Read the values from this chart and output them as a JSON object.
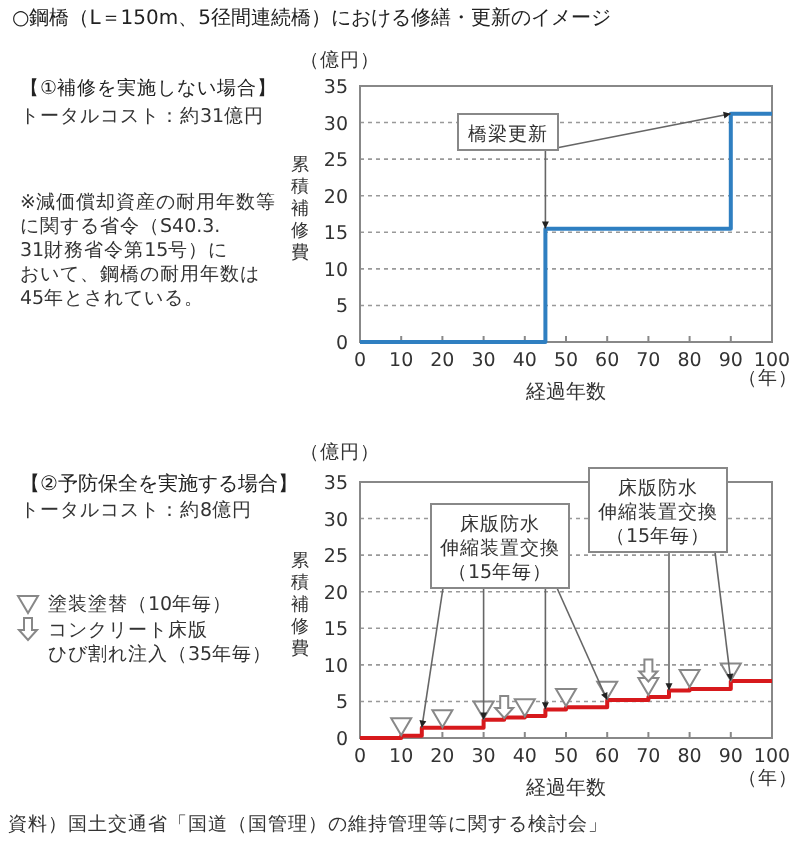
{
  "chart_data": [
    {
      "type": "step",
      "title": "○鋼橋（L＝150m、5径間連続橋）における修繕・更新のイメージ",
      "subtitle": "【①補修を実施しない場合】",
      "xlabel": "経過年数",
      "ylabel": "累積補修費",
      "annotations": [
        "（億円）",
        "（年）",
        "トータルコスト：約31億円",
        "※減価償却資産の耐用年数等に関する省令（S40.3.31財務省令第15号）において、鋼橋の耐用年数は45年とされている。",
        {
          "text": "橋梁更新",
          "x": 45,
          "y": 15.5
        }
      ],
      "x": [
        0,
        45,
        90,
        100
      ],
      "series": [
        {
          "color": "#2f7fc1",
          "values": [
            0,
            15.5,
            31.2,
            31.2
          ]
        }
      ],
      "xlim": [
        0,
        100
      ],
      "xticks": [
        0,
        10,
        20,
        30,
        40,
        50,
        60,
        70,
        80,
        90,
        100
      ],
      "ylim": [
        0,
        35
      ],
      "yticks": [
        0,
        5,
        10,
        15,
        20,
        25,
        30,
        35
      ],
      "grid": "y"
    },
    {
      "type": "step",
      "title": "【②予防保全を実施する場合】",
      "xlabel": "経過年数",
      "ylabel": "累積補修費",
      "annotations": [
        "（億円）",
        "（年）",
        "トータルコスト：約8億円",
        {
          "text": "床版防水伸縮装置交換（15年毎）",
          "x": 15,
          "y": 1.4
        },
        {
          "text": "床版防水伸縮装置交換（15年毎）",
          "x": 75,
          "y": 6.5
        },
        "資料）国土交通省「国道（国管理）の維持管理等に関する検討会」"
      ],
      "series": [
        {
          "color": "#d7191c",
          "x": [
            0,
            10,
            15,
            30,
            35,
            40,
            45,
            50,
            60,
            70,
            75,
            80,
            90,
            100
          ],
          "values": [
            0,
            0.3,
            1.4,
            2.5,
            2.8,
            3.0,
            3.9,
            4.2,
            5.2,
            5.6,
            6.5,
            6.7,
            7.8,
            7.8
          ]
        },
        {
          "type": "scatter",
          "name": "塗装塗替（10年毎）",
          "color": "#888888",
          "marker": "triangle",
          "x": [
            10,
            20,
            30,
            40,
            50,
            60,
            70,
            80,
            90
          ],
          "values": [
            1.6,
            2.7,
            3.9,
            4.2,
            5.6,
            6.6,
            7.1,
            8.2,
            9.1
          ]
        },
        {
          "type": "scatter",
          "name": "コンクリート床版ひび割れ注入（35年毎）",
          "color": "#888888",
          "x": [
            35,
            70
          ],
          "values": [
            4.1,
            9.1
          ]
        }
      ],
      "legend": "left",
      "xlim": [
        0,
        100
      ],
      "xticks": [
        0,
        10,
        20,
        30,
        40,
        50,
        60,
        70,
        80,
        90,
        100
      ],
      "ylim": [
        0,
        35
      ],
      "yticks": [
        0,
        5,
        10,
        15,
        20,
        25,
        30,
        35
      ],
      "grid": "y"
    }
  ]
}
